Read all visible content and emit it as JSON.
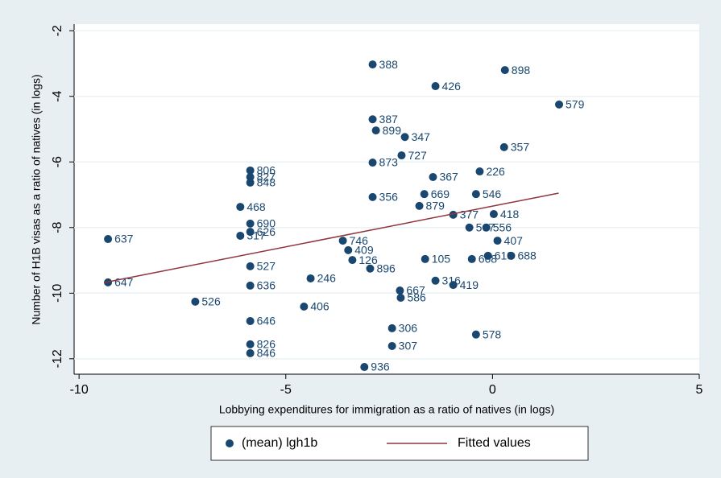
{
  "chart_data": {
    "type": "scatter",
    "x_label": "Lobbying expenditures for immigration as a ratio of natives (in logs)",
    "y_label": "Number of H1B visas as a ratio of natives (in logs)",
    "xlim": [
      -10.12,
      5
    ],
    "ylim": [
      -12.47,
      -1.8
    ],
    "xticks": [
      -10,
      -5,
      0,
      5
    ],
    "yticks": [
      -2,
      -4,
      -6,
      -8,
      -10,
      -12
    ],
    "grid": true,
    "series": [
      {
        "name": "(mean) lgh1b",
        "color": "#1a476f",
        "x": [
          -2.9,
          0.3,
          -1.38,
          1.61,
          -2.9,
          -2.82,
          -2.12,
          0.28,
          -0.31,
          -1.44,
          -0.4,
          -1.65,
          -2.9,
          -6.1,
          0.03,
          -0.95,
          -0.15,
          -0.56,
          -9.3,
          -6.1,
          -5.86,
          0.12,
          0.45,
          -0.11,
          -0.5,
          -1.63,
          -3.62,
          -3.49,
          -3.39,
          -2.96,
          -4.4,
          -9.3,
          -7.19,
          -4.56,
          -5.86,
          -2.43,
          -0.4,
          -5.86,
          -2.43,
          -5.86,
          -3.1,
          -5.86,
          -5.86,
          -5.86,
          -5.86,
          -5.86,
          -1.38,
          -0.95,
          -2.24,
          -2.22,
          -5.86,
          -2.9,
          -2.2,
          -1.77
        ],
        "values": [
          -3.03,
          -3.2,
          -3.69,
          -4.25,
          -4.7,
          -5.04,
          -5.24,
          -5.55,
          -6.29,
          -6.46,
          -6.98,
          -6.98,
          -7.07,
          -7.37,
          -7.59,
          -7.61,
          -8.0,
          -8.0,
          -8.35,
          -8.25,
          -8.13,
          -8.4,
          -8.86,
          -8.86,
          -8.96,
          -8.96,
          -8.4,
          -8.69,
          -8.99,
          -9.25,
          -9.55,
          -9.67,
          -10.26,
          -10.41,
          -10.85,
          -11.07,
          -11.26,
          -11.56,
          -11.61,
          -11.83,
          -12.25,
          -6.26,
          -6.46,
          -6.63,
          -9.77,
          -9.18,
          -9.62,
          -9.75,
          -9.92,
          -10.14,
          -7.88,
          -6.02,
          -5.8,
          -7.34
        ],
        "labels": [
          "388",
          "898",
          "426",
          "579",
          "387",
          "899",
          "347",
          "357",
          "226",
          "367",
          "546",
          "669",
          "356",
          "468",
          "418",
          "377",
          "556",
          "567",
          "637",
          "317",
          "626",
          "407",
          "688",
          "619",
          "668",
          "105",
          "746",
          "409",
          "126",
          "896",
          "246",
          "647",
          "526",
          "406",
          "646",
          "306",
          "578",
          "826",
          "307",
          "846",
          "936",
          "806",
          "827",
          "848",
          "636",
          "527",
          "316",
          "419",
          "667",
          "586",
          "690",
          "873",
          "727",
          "879"
        ]
      },
      {
        "name": "Fitted values",
        "color": "#90353b",
        "x": [
          -9.4,
          1.6
        ],
        "values": [
          -9.68,
          -6.95
        ]
      }
    ]
  }
}
